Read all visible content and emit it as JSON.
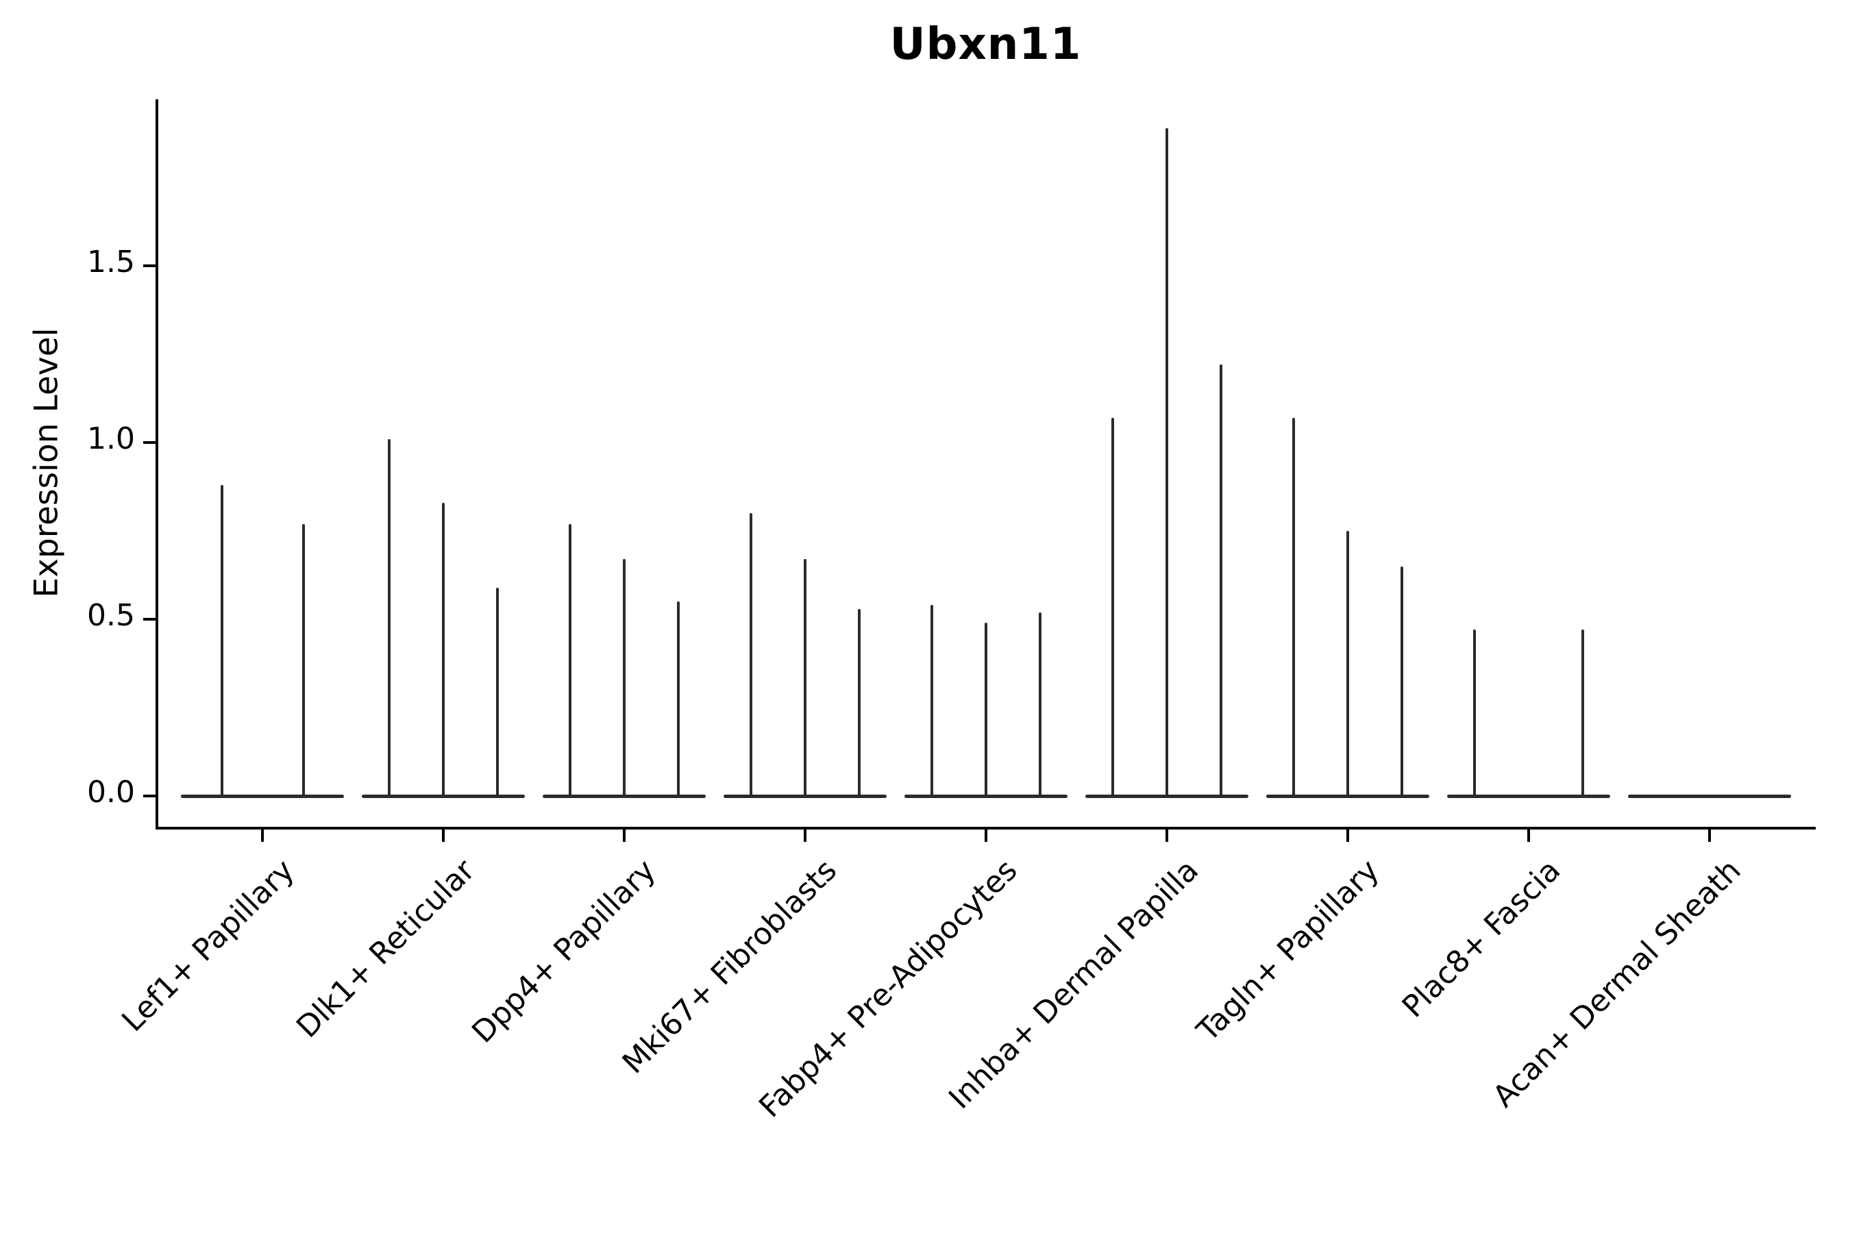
{
  "title": "Ubxn11",
  "y_axis": {
    "label": "Expression Level",
    "tick_labels": [
      "0.0",
      "0.5",
      "1.0",
      "1.5"
    ],
    "tick_values": [
      0,
      0.5,
      1.0,
      1.5
    ]
  },
  "chart_data": {
    "type": "violin",
    "title": "Ubxn11",
    "ylabel": "Expression Level",
    "xlabel": "",
    "ylim": [
      -0.09,
      1.97
    ],
    "grid": false,
    "legend": "none",
    "categories": [
      "Lef1+ Papillary",
      "Dlk1+ Reticular",
      "Dpp4+ Papillary",
      "Mki67+ Fibroblasts",
      "Fabp4+ Pre-Adipocytes",
      "Inhba+ Dermal Papilla",
      "Tagln+ Papillary",
      "Plac8+ Fascia",
      "Acan+ Dermal Sheath"
    ],
    "violin_maxima": [
      [
        0.88,
        0.77
      ],
      [
        1.01,
        0.83,
        0.59
      ],
      [
        0.77,
        0.67,
        0.55
      ],
      [
        0.8,
        0.67,
        0.53
      ],
      [
        0.54,
        0.49,
        0.52
      ],
      [
        1.07,
        1.89,
        1.22
      ],
      [
        1.07,
        0.75,
        0.65
      ],
      [
        0.47,
        0.0,
        0.47
      ],
      [
        0.0
      ]
    ]
  },
  "colors": {
    "violin": "#2b2b2b",
    "axis": "#000000",
    "text": "#000000",
    "background": "#ffffff"
  }
}
